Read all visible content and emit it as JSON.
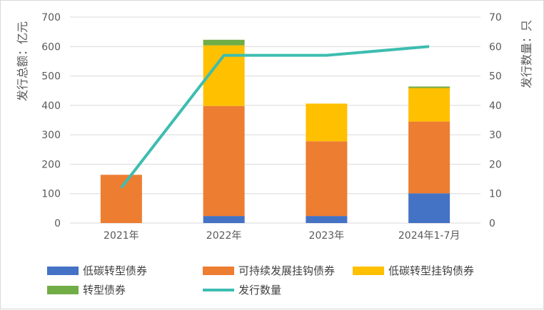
{
  "chart_data": {
    "type": "bar",
    "stacked": true,
    "categories": [
      "2021年",
      "2022年",
      "2023年",
      "2024年1-7月"
    ],
    "series": [
      {
        "name": "低碳转型债券",
        "color": "#4472c4",
        "values": [
          0,
          24,
          24,
          101
        ]
      },
      {
        "name": "可持续发展挂钩债券",
        "color": "#ed7d31",
        "values": [
          164,
          374,
          254,
          244
        ]
      },
      {
        "name": "低碳转型挂钩债券",
        "color": "#ffc000",
        "values": [
          0,
          206,
          128,
          114
        ]
      },
      {
        "name": "转型债券",
        "color": "#70ad47",
        "values": [
          0,
          19,
          0,
          5
        ]
      }
    ],
    "line_series": {
      "name": "发行数量",
      "color": "#3dbdb0",
      "axis": "right",
      "values": [
        12,
        57,
        57,
        60
      ]
    },
    "ylabel": "发行总额：亿元",
    "ylabel_right": "发行数量：只",
    "ylim": [
      0,
      700
    ],
    "ylim_right": [
      0,
      70
    ],
    "yticks": [
      "0",
      "100",
      "200",
      "300",
      "400",
      "500",
      "600",
      "700"
    ],
    "yticks_right": [
      "0",
      "10",
      "20",
      "30",
      "40",
      "50",
      "60",
      "70"
    ],
    "grid": true,
    "legend_position": "bottom"
  }
}
